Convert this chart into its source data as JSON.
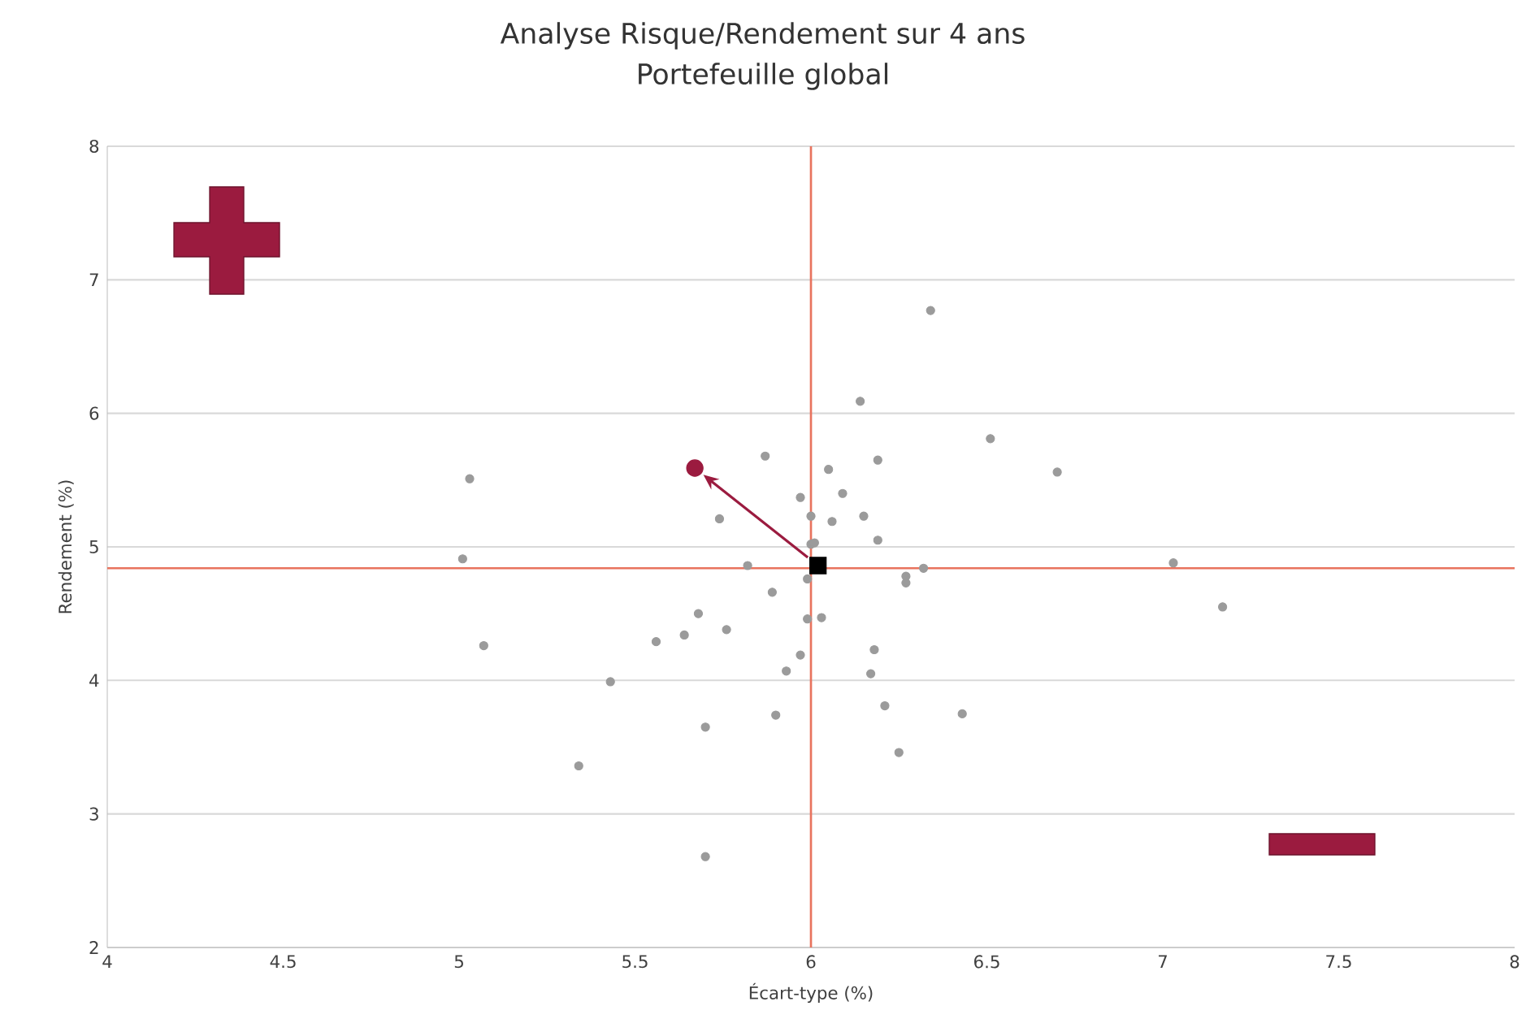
{
  "chart_data": {
    "type": "scatter",
    "title": "Analyse Risque/Rendement sur 4 ans",
    "subtitle": "Portefeuille global",
    "xlabel": "Écart-type (%)",
    "ylabel": "Rendement (%)",
    "xlim": [
      4,
      8
    ],
    "xticks": [
      4,
      4.5,
      5,
      5.5,
      6,
      6.5,
      7,
      7.5,
      8
    ],
    "ylim": [
      2,
      8
    ],
    "yticks": [
      2,
      3,
      4,
      5,
      6,
      7,
      8
    ],
    "grid": "y",
    "series": [
      {
        "color": "#9b9b9b",
        "marker": "circle",
        "x": [
          6.34,
          6.14,
          6.51,
          5.87,
          6.19,
          6.05,
          6.09,
          5.97,
          5.74,
          6.0,
          6.06,
          6.15,
          6.19,
          6.0,
          6.01,
          5.03,
          5.01,
          5.82,
          6.32,
          6.27,
          6.27,
          5.99,
          5.89,
          5.68,
          5.99,
          6.03,
          5.07,
          5.56,
          5.64,
          5.76,
          5.97,
          6.18,
          5.93,
          6.17,
          5.43,
          5.9,
          6.21,
          6.43,
          5.7,
          6.25,
          5.34,
          5.7,
          6.7,
          7.03,
          7.17
        ],
        "values": [
          6.77,
          6.09,
          5.81,
          5.68,
          5.65,
          5.58,
          5.4,
          5.37,
          5.21,
          5.23,
          5.19,
          5.23,
          5.05,
          5.02,
          5.03,
          5.51,
          4.91,
          4.86,
          4.84,
          4.78,
          4.73,
          4.76,
          4.66,
          4.5,
          4.46,
          4.47,
          4.26,
          4.29,
          4.34,
          4.38,
          4.19,
          4.23,
          4.07,
          4.05,
          3.99,
          3.74,
          3.81,
          3.75,
          3.65,
          3.46,
          3.36,
          2.68,
          5.56,
          4.88,
          4.55
        ]
      },
      {
        "color": "#000000",
        "marker": "square",
        "x": [
          6.02
        ],
        "values": [
          4.86
        ]
      },
      {
        "color": "#9b1b3f",
        "marker": "circle",
        "x": [
          5.67
        ],
        "values": [
          5.59
        ]
      }
    ],
    "ref_lines": [
      {
        "axis": "x",
        "value": 6.0,
        "color": "#e8735e"
      },
      {
        "axis": "y",
        "value": 4.84,
        "color": "#e8735e"
      }
    ]
  }
}
